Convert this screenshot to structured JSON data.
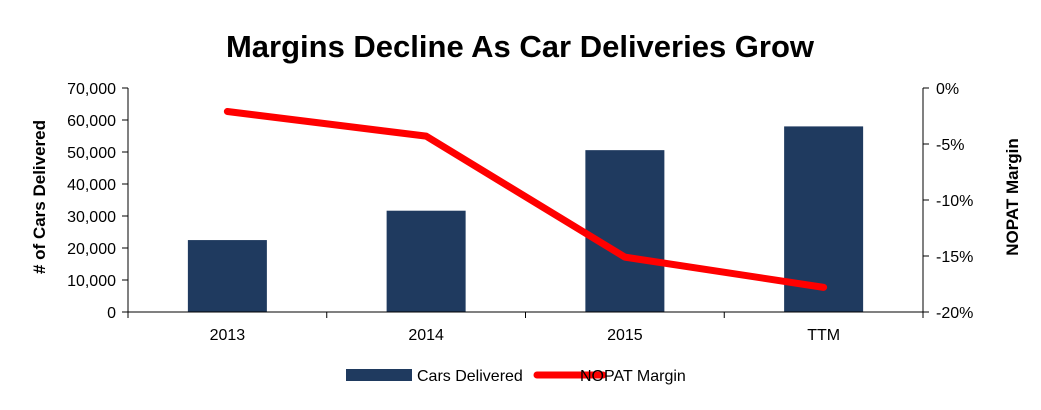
{
  "chart_data": {
    "type": "bar",
    "title": "Margins Decline As Car Deliveries Grow",
    "categories": [
      "2013",
      "2014",
      "2015",
      "TTM"
    ],
    "series": [
      {
        "name": "Cars Delivered",
        "type": "bar",
        "axis": "left",
        "color": "#1f3a5f",
        "values": [
          22477,
          31655,
          50580,
          58000
        ]
      },
      {
        "name": "NOPAT Margin",
        "type": "line",
        "axis": "right",
        "color": "#ff0000",
        "values": [
          -2.1,
          -4.3,
          -15.1,
          -17.8
        ]
      }
    ],
    "ylabel_left": "# of Cars Delivered",
    "ylabel_right": "NOPAT Margin",
    "ylim_left": [
      0,
      70000
    ],
    "ylim_right": [
      -20,
      0
    ],
    "yticks_left": [
      "0",
      "10,000",
      "20,000",
      "30,000",
      "40,000",
      "50,000",
      "60,000",
      "70,000"
    ],
    "yticks_right": [
      "-20%",
      "-15%",
      "-10%",
      "-5%",
      "0%"
    ],
    "grid": false,
    "legend_position": "bottom"
  }
}
